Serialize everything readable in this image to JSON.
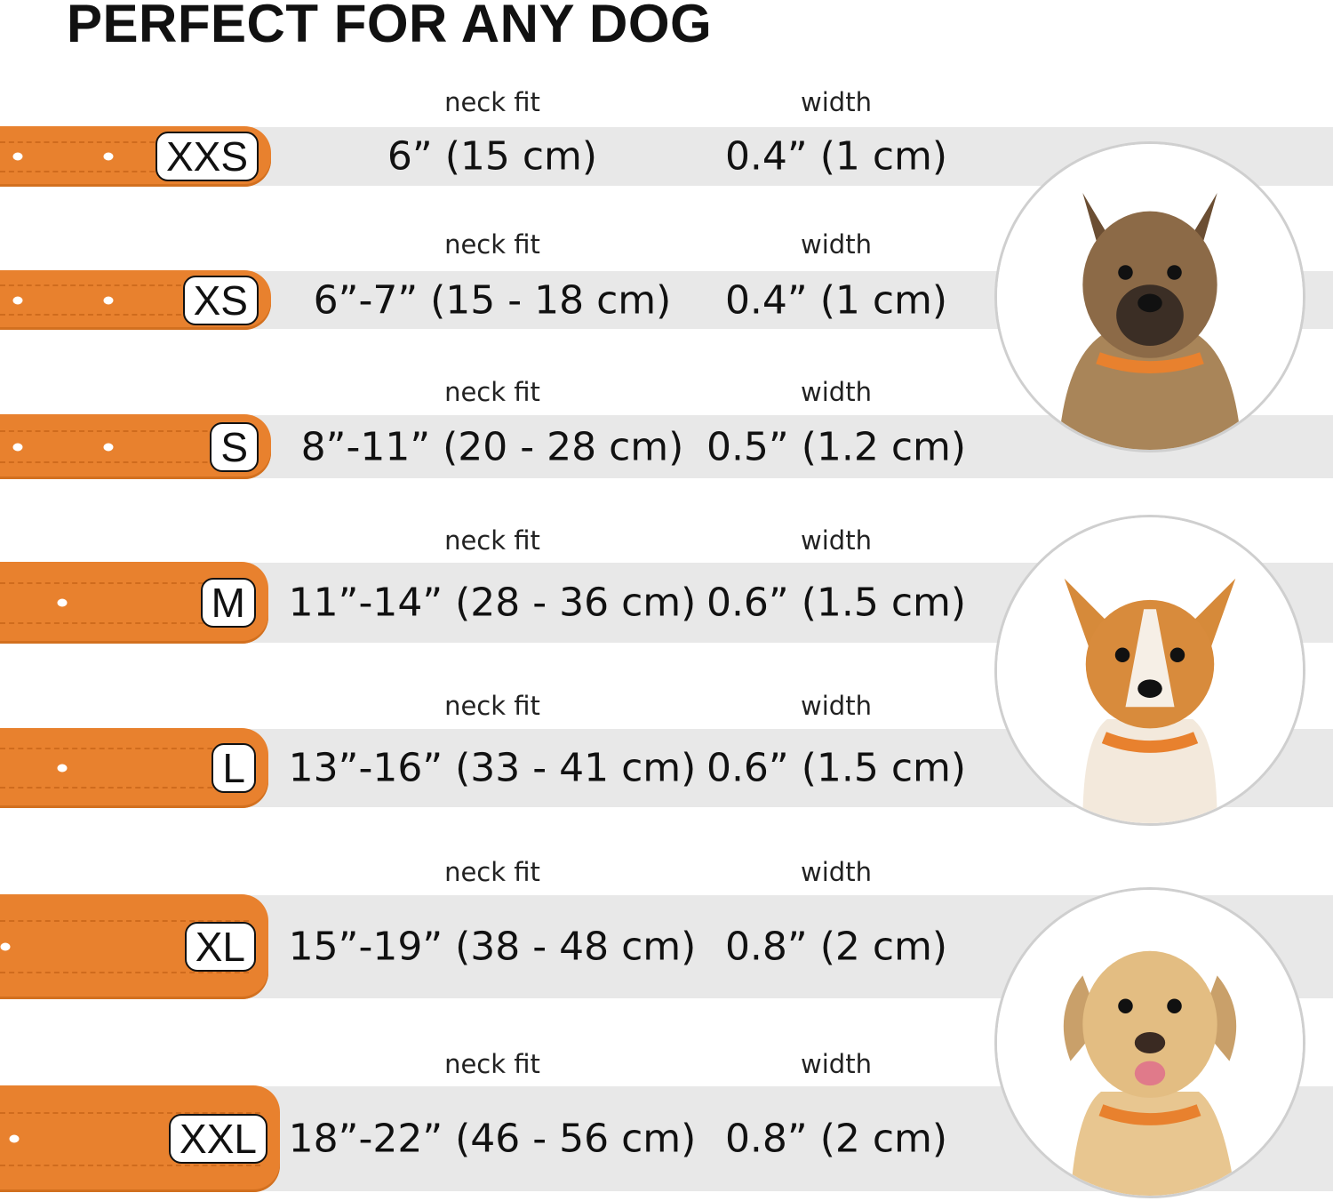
{
  "title": "PERFECT FOR ANY DOG",
  "column_labels": {
    "neck_fit": "neck fit",
    "width": "width"
  },
  "collar_color": "#e8812e",
  "band_color": "#e8e8e8",
  "sizes": [
    {
      "size": "XXS",
      "neck_fit": "6” (15 cm)",
      "width": "0.4” (1 cm)"
    },
    {
      "size": "XS",
      "neck_fit": "6”-7” (15 - 18 cm)",
      "width": "0.4” (1 cm)"
    },
    {
      "size": "S",
      "neck_fit": "8”-11” (20 - 28 cm)",
      "width": "0.5” (1.2 cm)"
    },
    {
      "size": "M",
      "neck_fit": "11”-14” (28 - 36 cm)",
      "width": "0.6” (1.5 cm)"
    },
    {
      "size": "L",
      "neck_fit": "13”-16” (33 - 41 cm)",
      "width": "0.6” (1.5 cm)"
    },
    {
      "size": "XL",
      "neck_fit": "15”-19” (38 - 48 cm)",
      "width": "0.8” (2 cm)"
    },
    {
      "size": "XXL",
      "neck_fit": "18”-22” (46 - 56 cm)",
      "width": "0.8” (2 cm)"
    }
  ],
  "dog_photos": [
    "terrier-photo",
    "corgi-photo",
    "labrador-photo"
  ]
}
